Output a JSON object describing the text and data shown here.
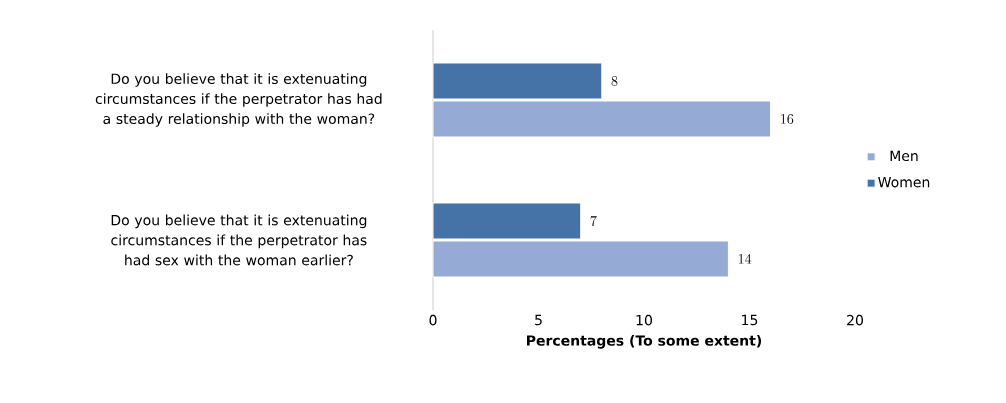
{
  "chart_data": {
    "type": "bar",
    "orientation": "horizontal",
    "xlabel": "Percentages  (To some extent)",
    "categories": [
      "Do you believe that it is extenuating circumstances if the perpetrator has had a steady relationship with the woman?",
      "Do you believe that it is extenuating circumstances if the perpetrator has had sex with the woman earlier?"
    ],
    "series": [
      {
        "name": "Men",
        "color": "#95abd5",
        "values": [
          16,
          14
        ]
      },
      {
        "name": "Women",
        "color": "#4573a8",
        "values": [
          8,
          7
        ]
      }
    ],
    "xlim": [
      0,
      20
    ],
    "xticks": [
      0,
      5,
      10,
      15,
      20
    ],
    "data_labels": true,
    "legend": "right",
    "grid": false
  }
}
